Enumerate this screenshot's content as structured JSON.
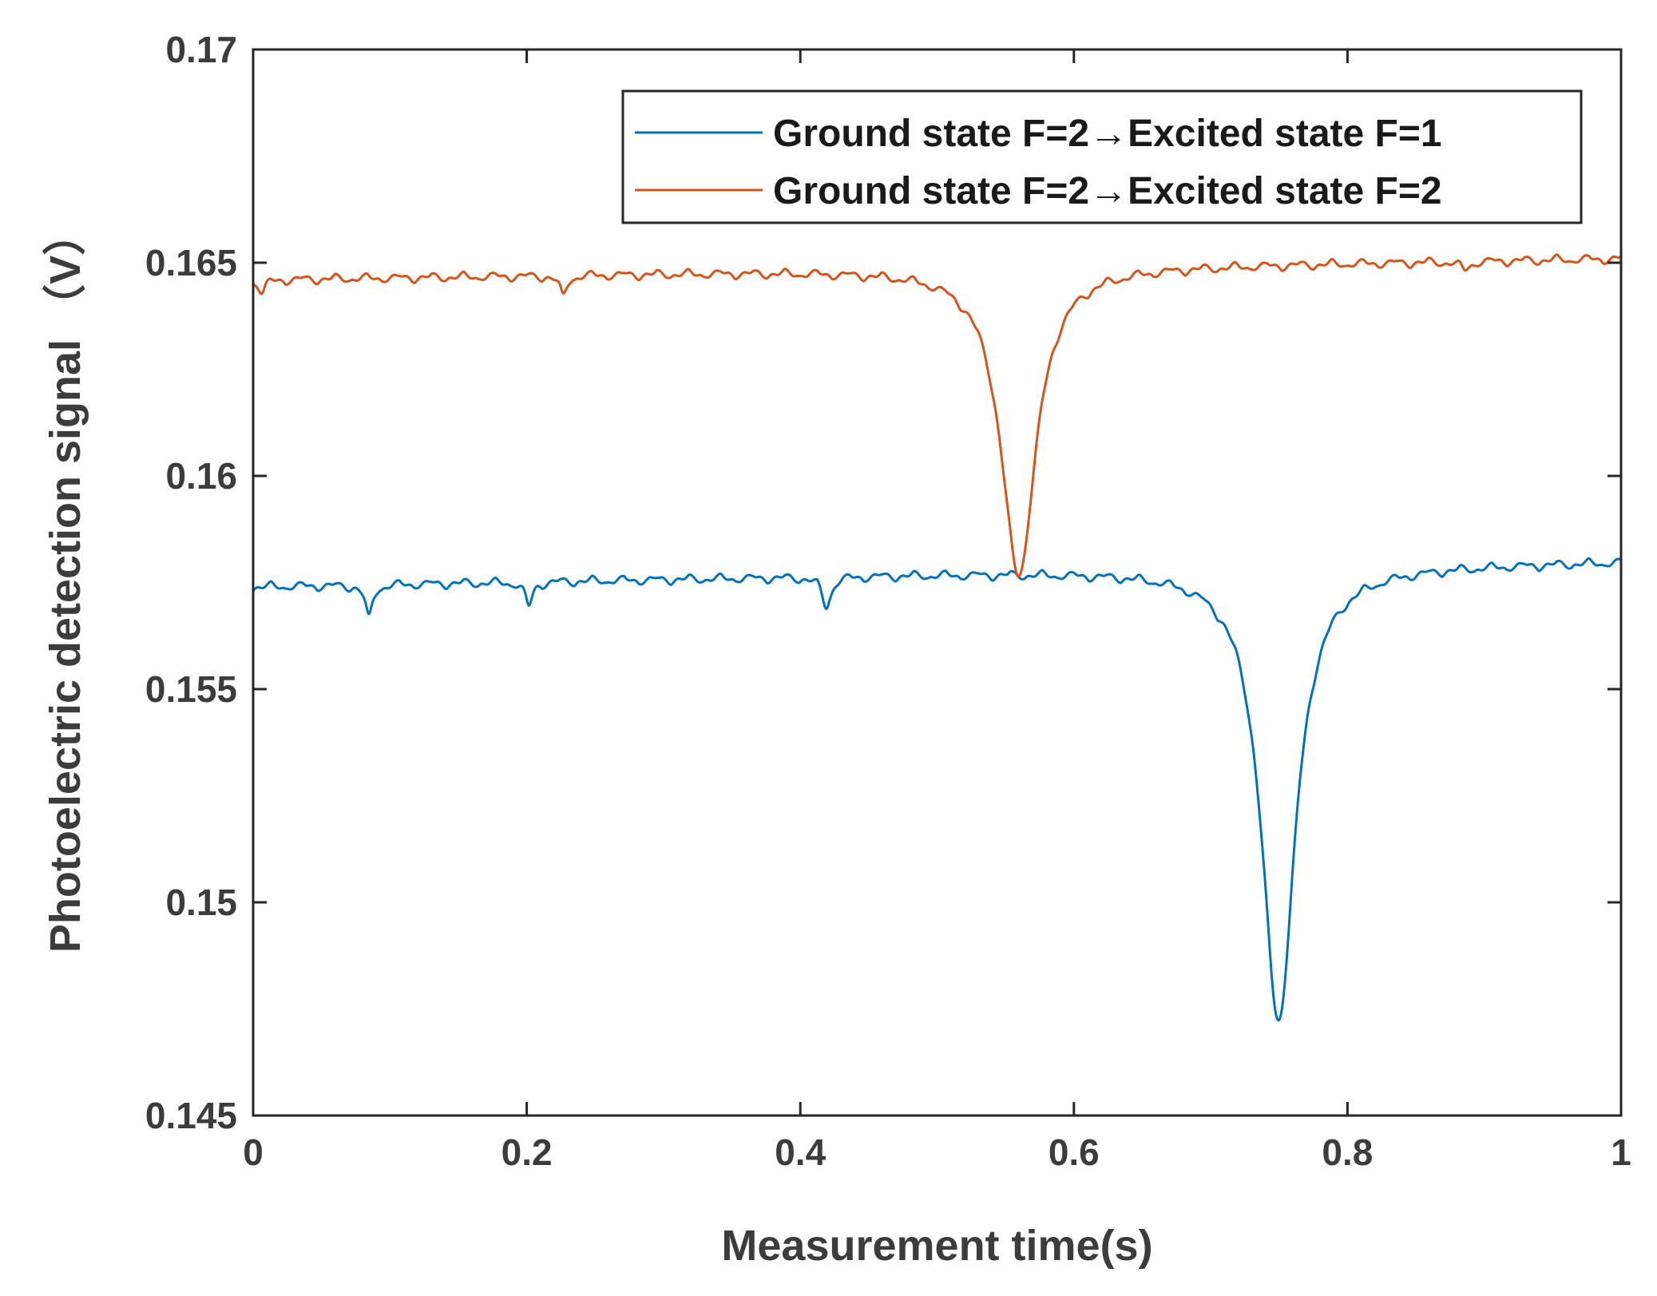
{
  "chart_data": {
    "type": "line",
    "xlabel": "Measurement time(s)",
    "ylabel": "Photoelectric detection signal （V）",
    "xlim": [
      0,
      1
    ],
    "ylim": [
      0.145,
      0.17
    ],
    "xticks": [
      0,
      0.2,
      0.4,
      0.6,
      0.8,
      1
    ],
    "xtick_labels": [
      "0",
      "0.2",
      "0.4",
      "0.6",
      "0.8",
      "1"
    ],
    "yticks": [
      0.145,
      0.15,
      0.155,
      0.16,
      0.165,
      0.17
    ],
    "ytick_labels": [
      "0.145",
      "0.15",
      "0.155",
      "0.16",
      "0.165",
      "0.17"
    ],
    "grid": false,
    "legend_position": "top-right",
    "series": [
      {
        "name": "Ground state F=2→Excited state F=1",
        "color": "#0072BD",
        "baseline_start": 0.1574,
        "baseline_end": 0.158,
        "ripple_amplitude": 0.00018,
        "ripple_period": 0.0235,
        "dips": [
          {
            "center": 0.0845,
            "depth": 0.0008,
            "width": 0.003
          },
          {
            "center": 0.2015,
            "depth": 0.0006,
            "width": 0.003
          },
          {
            "center": 0.419,
            "depth": 0.0007,
            "width": 0.004
          },
          {
            "center": 0.7495,
            "depth": 0.0106,
            "width": 0.015
          }
        ]
      },
      {
        "name": "Ground state F=2→Excited state F=2",
        "color": "#D95319",
        "baseline_start": 0.1646,
        "baseline_end": 0.1651,
        "ripple_amplitude": 0.00018,
        "ripple_period": 0.0235,
        "dips": [
          {
            "center": 0.0065,
            "depth": 0.0003,
            "width": 0.003
          },
          {
            "center": 0.2265,
            "depth": 0.0005,
            "width": 0.003
          },
          {
            "center": 0.5595,
            "depth": 0.0072,
            "width": 0.0155
          },
          {
            "center": 0.8855,
            "depth": 0.0002,
            "width": 0.004
          }
        ]
      }
    ]
  }
}
